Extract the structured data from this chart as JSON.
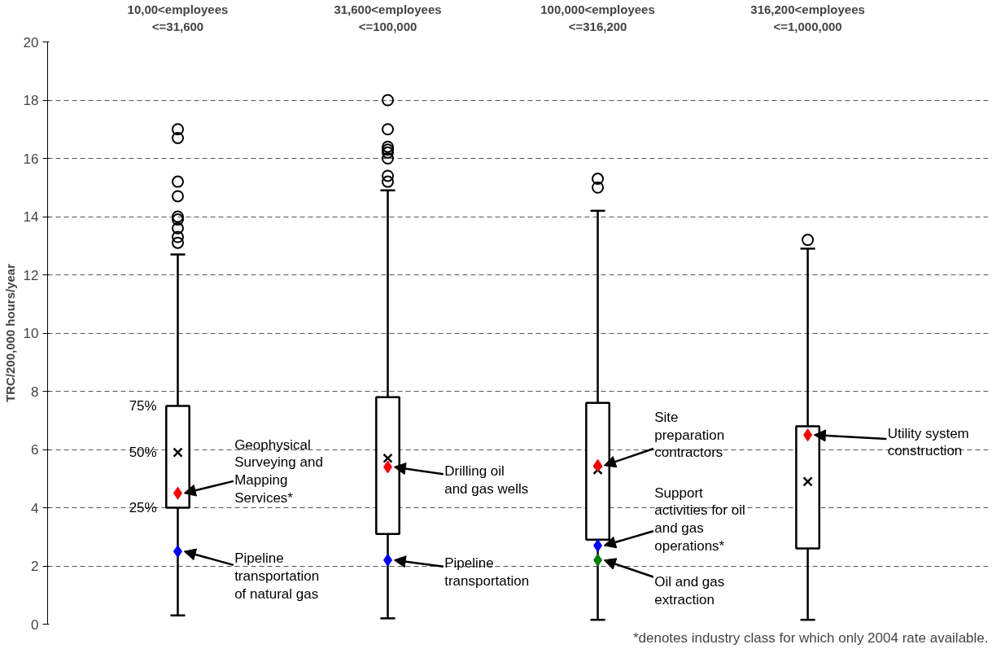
{
  "chart_data": {
    "type": "box",
    "categories": [
      "10,00<employees\n<=31,600",
      "31,600<employees\n<=100,000",
      "100,000<employees\n<=316,200",
      "316,200<employees\n<=1,000,000"
    ],
    "ylabel": "TRC/200,000 hours/year",
    "ylim": [
      0,
      20
    ],
    "yticks": [
      0,
      2,
      4,
      6,
      8,
      10,
      12,
      14,
      16,
      18,
      20
    ],
    "grid": "y",
    "boxes": [
      {
        "low": 0.3,
        "q1": 4.0,
        "median": 5.9,
        "q3": 7.5,
        "high": 12.7,
        "outliers": [
          17.0,
          16.7,
          15.2,
          14.7,
          14.0,
          13.9,
          13.6,
          13.3,
          13.1
        ]
      },
      {
        "low": 0.2,
        "q1": 3.1,
        "median": 5.7,
        "q3": 7.8,
        "high": 14.9,
        "outliers": [
          18.0,
          17.0,
          16.4,
          16.3,
          16.2,
          16.0,
          15.4,
          15.2
        ]
      },
      {
        "low": 0.15,
        "q1": 2.9,
        "median": 5.3,
        "q3": 7.6,
        "high": 14.2,
        "outliers": [
          15.3,
          15.0
        ]
      },
      {
        "low": 0.15,
        "q1": 2.6,
        "median": 4.9,
        "q3": 6.8,
        "high": 12.9,
        "outliers": [
          13.2
        ]
      }
    ],
    "series": [
      {
        "type": "scatter",
        "marker": "diamond",
        "color": "#ff0000",
        "x": [
          "10,00<employees\n<=31,600",
          "31,600<employees\n<=100,000",
          "100,000<employees\n<=316,200",
          "316,200<employees\n<=1,000,000"
        ],
        "values": [
          4.5,
          5.4,
          5.45,
          6.5
        ]
      },
      {
        "type": "scatter",
        "marker": "diamond",
        "color": "#0000ff",
        "x": [
          "10,00<employees\n<=31,600",
          "31,600<employees\n<=100,000",
          "100,000<employees\n<=316,200"
        ],
        "values": [
          2.5,
          2.2,
          2.7
        ]
      },
      {
        "type": "scatter",
        "marker": "diamond",
        "color": "#008000",
        "x": [
          "100,000<employees\n<=316,200"
        ],
        "values": [
          2.2
        ]
      }
    ],
    "annotations": [
      {
        "text": "75%",
        "x": "10,00<employees\n<=31,600",
        "y": 7.5
      },
      {
        "text": "50%",
        "x": "10,00<employees\n<=31,600",
        "y": 5.9
      },
      {
        "text": "25%",
        "x": "10,00<employees\n<=31,600",
        "y": 4.0
      },
      {
        "text": "Geophysical\nSurveying and\nMapping\nServices*",
        "x": "10,00<employees\n<=31,600",
        "y": 4.5
      },
      {
        "text": "Pipeline\ntransportation\nof natural gas",
        "x": "10,00<employees\n<=31,600",
        "y": 2.5
      },
      {
        "text": "Drilling oil\nand gas wells",
        "x": "31,600<employees\n<=100,000",
        "y": 5.4
      },
      {
        "text": "Pipeline\ntransportation",
        "x": "31,600<employees\n<=100,000",
        "y": 2.2
      },
      {
        "text": "Site\npreparation\ncontractors",
        "x": "100,000<employees\n<=316,200",
        "y": 5.45
      },
      {
        "text": "Support\nactivities for oil\nand gas\noperations*",
        "x": "100,000<employees\n<=316,200",
        "y": 2.7
      },
      {
        "text": "Oil and gas\nextraction",
        "x": "100,000<employees\n<=316,200",
        "y": 2.2
      },
      {
        "text": "Utility system\nconstruction",
        "x": "316,200<employees\n<=1,000,000",
        "y": 6.5
      },
      "*denotes industry class for which only 2004 rate available."
    ]
  }
}
